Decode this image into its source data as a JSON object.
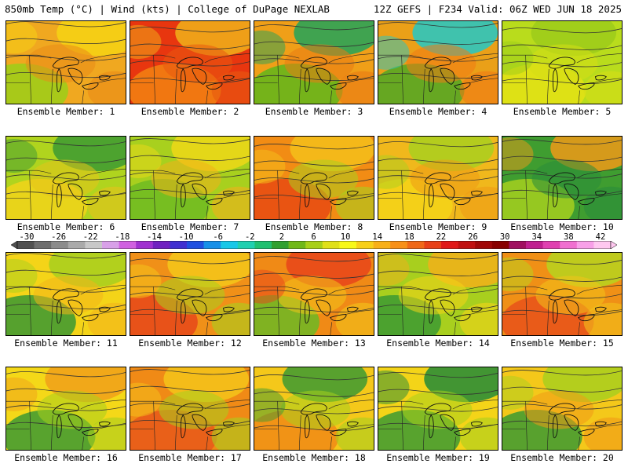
{
  "header": {
    "title_left": "850mb Temp (°C) | Wind (kts) | College of DuPage NEXLAB",
    "title_right": "12Z GEFS | F234 Valid: 06Z WED JUN 18 2025"
  },
  "panels": [
    {
      "label": "Ensemble Member: 1",
      "palette": [
        "#f0a820",
        "#9bcf19",
        "#f6d414",
        "#e98b17"
      ]
    },
    {
      "label": "Ensemble Member: 2",
      "palette": [
        "#e8360f",
        "#f28212",
        "#f0b21a",
        "#e85a10"
      ]
    },
    {
      "label": "Ensemble Member: 3",
      "palette": [
        "#f09f18",
        "#5fb61b",
        "#21a35a",
        "#e97a14"
      ]
    },
    {
      "label": "Ensemble Member: 4",
      "palette": [
        "#eaa018",
        "#4fa825",
        "#22c8c8",
        "#f07a14"
      ]
    },
    {
      "label": "Ensemble Member: 5",
      "palette": [
        "#b9dc1c",
        "#e4e214",
        "#9ccb1a",
        "#d6de16"
      ]
    },
    {
      "label": "Ensemble Member: 6",
      "palette": [
        "#b0d41e",
        "#f2d41a",
        "#3c9a32",
        "#e6c21a"
      ]
    },
    {
      "label": "Ensemble Member: 7",
      "palette": [
        "#a8d01e",
        "#6ebb22",
        "#eed818",
        "#f0b01a"
      ]
    },
    {
      "label": "Ensemble Member: 8",
      "palette": [
        "#f28c14",
        "#e84a12",
        "#f4c01a",
        "#a9cf1e"
      ]
    },
    {
      "label": "Ensemble Member: 9",
      "palette": [
        "#f0b81c",
        "#f4d418",
        "#a9cf1e",
        "#ee9b16"
      ]
    },
    {
      "label": "Ensemble Member: 10",
      "palette": [
        "#3f9d30",
        "#a6d01e",
        "#f09a18",
        "#2a8c3a"
      ]
    },
    {
      "label": "Ensemble Member: 11",
      "palette": [
        "#f4d418",
        "#3a9832",
        "#a6cf1e",
        "#f2b41a"
      ]
    },
    {
      "label": "Ensemble Member: 12",
      "palette": [
        "#f09018",
        "#e6481a",
        "#f4c81a",
        "#a8d01e"
      ]
    },
    {
      "label": "Ensemble Member: 13",
      "palette": [
        "#f08a16",
        "#6cb824",
        "#e8441a",
        "#f2c41a"
      ]
    },
    {
      "label": "Ensemble Member: 14",
      "palette": [
        "#a8cf1e",
        "#3c9a32",
        "#f2b01a",
        "#f4d418"
      ]
    },
    {
      "label": "Ensemble Member: 15",
      "palette": [
        "#f09016",
        "#e8521a",
        "#b6d51e",
        "#f2c21a"
      ]
    },
    {
      "label": "Ensemble Member: 16",
      "palette": [
        "#f4d818",
        "#3c9a32",
        "#f0a01a",
        "#a8cf1e"
      ]
    },
    {
      "label": "Ensemble Member: 17",
      "palette": [
        "#f08a16",
        "#e8581a",
        "#f4c41a",
        "#a8cf1e"
      ]
    },
    {
      "label": "Ensemble Member: 18",
      "palette": [
        "#f4c81a",
        "#f08a16",
        "#3c9a32",
        "#a8cf1e"
      ]
    },
    {
      "label": "Ensemble Member: 19",
      "palette": [
        "#f4d418",
        "#3c9a32",
        "#228a38",
        "#a8cf1e"
      ]
    },
    {
      "label": "Ensemble Member: 20",
      "palette": [
        "#f4c81a",
        "#3c9a32",
        "#a8cf1e",
        "#f09a18"
      ]
    }
  ],
  "colorbar": {
    "ticks": [
      "-30",
      "-26",
      "-22",
      "-18",
      "-14",
      "-10",
      "-6",
      "-2",
      "2",
      "6",
      "10",
      "14",
      "18",
      "22",
      "26",
      "30",
      "34",
      "38",
      "42"
    ],
    "colors": [
      "#505050",
      "#6e6e6e",
      "#8c8c8c",
      "#aaaaaa",
      "#c8c8c8",
      "#d8a0e8",
      "#d060e0",
      "#a030d0",
      "#7020c0",
      "#4030d0",
      "#2050e0",
      "#1890e8",
      "#18c8e8",
      "#20d0b0",
      "#20c070",
      "#30a030",
      "#70b818",
      "#a8d018",
      "#e0e018",
      "#f8f818",
      "#f8d018",
      "#f8b018",
      "#f89018",
      "#f06818",
      "#e84018",
      "#e01818",
      "#c01010",
      "#a00808",
      "#880000",
      "#a01060",
      "#c02090",
      "#e040b0",
      "#f070d0",
      "#f8a0e8",
      "#ffc8f0"
    ]
  }
}
